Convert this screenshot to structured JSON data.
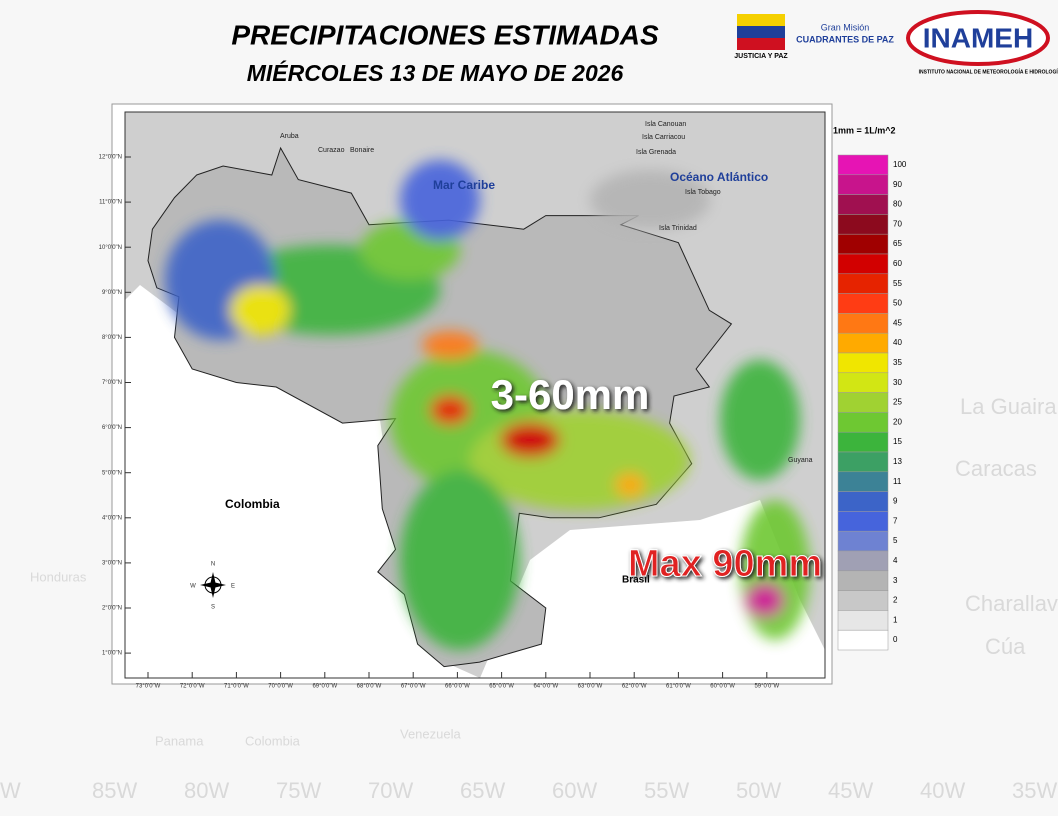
{
  "header": {
    "title": "PRECIPITACIONES ESTIMADAS",
    "date": "MIÉRCOLES 13 DE MAYO DE 2026"
  },
  "logos": {
    "justicia": "JUSTICIA Y PAZ",
    "gran_mision": "Gran Misión",
    "cuadrantes": "CUADRANTES DE PAZ",
    "inameh": "INAMEH",
    "inameh_full": "INSTITUTO NACIONAL DE METEOROLOGÍA E HIDROLOGÍA"
  },
  "map": {
    "lat_ticks": [
      "12°0'0\"N",
      "11°0'0\"N",
      "10°0'0\"N",
      "9°0'0\"N",
      "8°0'0\"N",
      "7°0'0\"N",
      "6°0'0\"N",
      "5°0'0\"N",
      "4°0'0\"N",
      "3°0'0\"N",
      "2°0'0\"N",
      "1°0'0\"N"
    ],
    "lon_ticks": [
      "73°0'0\"W",
      "72°0'0\"W",
      "71°0'0\"W",
      "70°0'0\"W",
      "69°0'0\"W",
      "68°0'0\"W",
      "67°0'0\"W",
      "66°0'0\"W",
      "65°0'0\"W",
      "64°0'0\"W",
      "63°0'0\"W",
      "62°0'0\"W",
      "61°0'0\"W",
      "60°0'0\"W",
      "59°0'0\"W"
    ],
    "places": {
      "aruba": "Aruba",
      "curazao": "Curazao",
      "bonaire": "Bonaire",
      "canouan": "Isla Canouan",
      "carriacou": "Isla Carriacou",
      "grenada": "Isla Grenada",
      "mar_caribe": "Mar Caribe",
      "oceano": "Océano Atlántico",
      "tobago": "Isla Tobago",
      "trinidad": "Isla Trinidad",
      "colombia": "Colombia",
      "guyana": "Guyana",
      "brasil": "Brasil"
    },
    "compass": {
      "n": "N",
      "s": "S",
      "e": "E",
      "w": "W"
    },
    "range_label": "3-60mm",
    "max_label": "Max 90mm"
  },
  "legend": {
    "title": "1mm = 1L/m^2",
    "values": [
      100,
      90,
      80,
      70,
      65,
      60,
      55,
      50,
      45,
      40,
      35,
      30,
      25,
      20,
      15,
      13,
      11,
      9,
      7,
      5,
      4,
      3,
      2,
      1,
      0
    ],
    "colors": [
      "#e614b4",
      "#c8148c",
      "#a01050",
      "#8c0a1e",
      "#a00000",
      "#d20000",
      "#e62300",
      "#ff3c14",
      "#ff7814",
      "#ffaa00",
      "#f0e600",
      "#d2e614",
      "#a0d232",
      "#6ec832",
      "#3cb43c",
      "#3ca064",
      "#3c8296",
      "#3c64c8",
      "#4664dc",
      "#6e82d2",
      "#a0a0b4",
      "#b4b4b4",
      "#c8c8c8",
      "#e6e6e6",
      "#ffffff"
    ]
  },
  "background": {
    "lon_labels": [
      "W",
      "85W",
      "80W",
      "75W",
      "70W",
      "65W",
      "60W",
      "55W",
      "50W",
      "45W",
      "40W",
      "35W"
    ],
    "places": [
      "La Guaira",
      "Caracas",
      "Charallave",
      "Cúa",
      "Panama",
      "Colombia",
      "Venezuela",
      "Honduras"
    ]
  }
}
